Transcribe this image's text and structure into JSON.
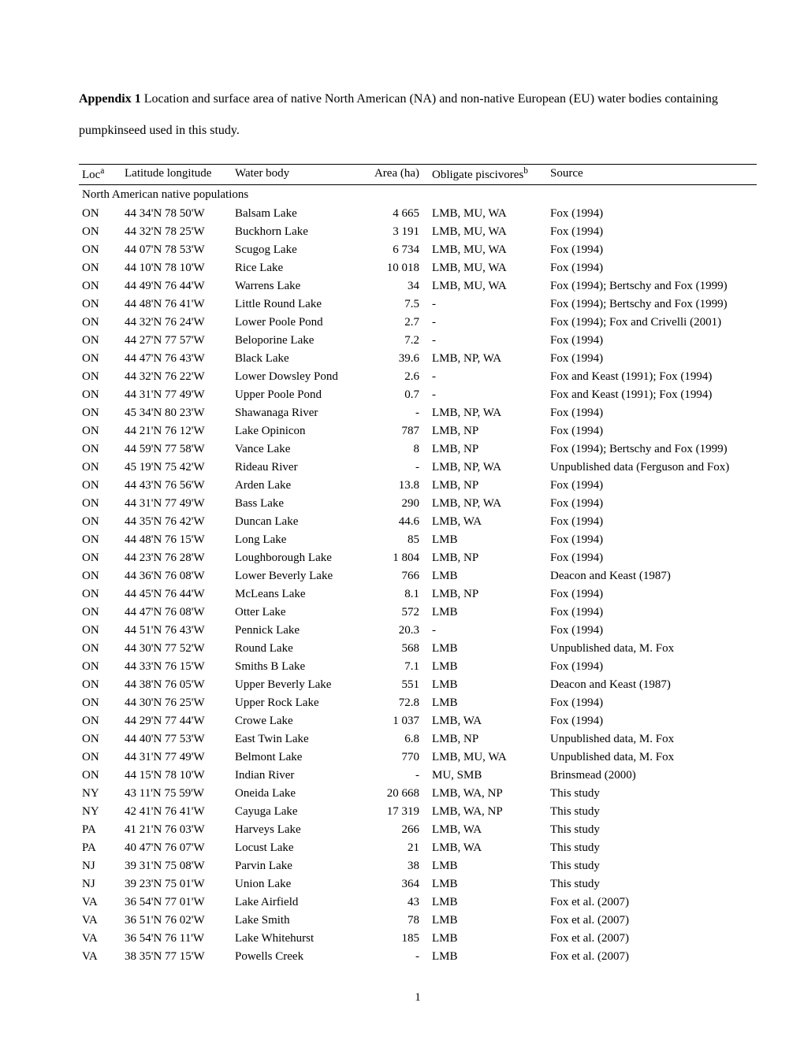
{
  "intro": {
    "bold": "Appendix 1",
    "rest": " Location and surface area of native North American (NA) and non-native European (EU) water bodies containing pumpkinseed used in this study."
  },
  "headers": {
    "loc": "Loc",
    "loc_sup": "a",
    "lat": "Latitude longitude",
    "wb": "Water body",
    "area": "Area (ha)",
    "pisc": "Obligate piscivores",
    "pisc_sup": "b",
    "src": "Source"
  },
  "section": "North American native populations",
  "rows": [
    {
      "loc": "ON",
      "lat": "44 34'N 78 50'W",
      "wb": "Balsam Lake",
      "area": "4 665",
      "pisc": "LMB, MU, WA",
      "src": "Fox (1994)"
    },
    {
      "loc": "ON",
      "lat": "44 32'N 78 25'W",
      "wb": "Buckhorn Lake",
      "area": "3 191",
      "pisc": "LMB, MU, WA",
      "src": "Fox (1994)"
    },
    {
      "loc": "ON",
      "lat": "44 07'N 78 53'W",
      "wb": "Scugog Lake",
      "area": "6 734",
      "pisc": "LMB, MU, WA",
      "src": "Fox (1994)"
    },
    {
      "loc": "ON",
      "lat": "44 10'N 78 10'W",
      "wb": "Rice Lake",
      "area": "10 018",
      "pisc": "LMB, MU, WA",
      "src": "Fox (1994)"
    },
    {
      "loc": "ON",
      "lat": "44 49'N 76 44'W",
      "wb": "Warrens Lake",
      "area": "34",
      "pisc": "LMB, MU, WA",
      "src": "Fox (1994); Bertschy and Fox (1999)"
    },
    {
      "loc": "ON",
      "lat": "44 48'N 76 41'W",
      "wb": "Little Round Lake",
      "area": "7.5",
      "pisc": "-",
      "src": "Fox (1994); Bertschy and Fox (1999)"
    },
    {
      "loc": "ON",
      "lat": "44 32'N 76 24'W",
      "wb": "Lower Poole Pond",
      "area": "2.7",
      "pisc": "-",
      "src": "Fox (1994); Fox and Crivelli (2001)"
    },
    {
      "loc": "ON",
      "lat": "44 27'N 77 57'W",
      "wb": "Beloporine Lake",
      "area": "7.2",
      "pisc": "-",
      "src": "Fox (1994)"
    },
    {
      "loc": "ON",
      "lat": "44 47'N 76 43'W",
      "wb": "Black Lake",
      "area": "39.6",
      "pisc": "LMB, NP, WA",
      "src": "Fox (1994)"
    },
    {
      "loc": "ON",
      "lat": "44 32'N 76 22'W",
      "wb": "Lower Dowsley Pond",
      "area": "2.6",
      "pisc": "-",
      "src": "Fox and Keast (1991); Fox (1994)"
    },
    {
      "loc": "ON",
      "lat": "44 31'N 77 49'W",
      "wb": "Upper Poole Pond",
      "area": "0.7",
      "pisc": "-",
      "src": "Fox and Keast (1991); Fox (1994)"
    },
    {
      "loc": "ON",
      "lat": "45 34'N 80 23'W",
      "wb": "Shawanaga River",
      "area": "-",
      "pisc": "LMB, NP, WA",
      "src": "Fox (1994)"
    },
    {
      "loc": "ON",
      "lat": "44 21'N 76 12'W",
      "wb": "Lake Opinicon",
      "area": "787",
      "pisc": "LMB, NP",
      "src": "Fox (1994)"
    },
    {
      "loc": "ON",
      "lat": "44 59'N 77 58'W",
      "wb": "Vance Lake",
      "area": "8",
      "pisc": "LMB, NP",
      "src": "Fox (1994); Bertschy and Fox (1999)"
    },
    {
      "loc": "ON",
      "lat": "45 19'N 75 42'W",
      "wb": "Rideau River",
      "area": "-",
      "pisc": "LMB, NP, WA",
      "src": "Unpublished data (Ferguson and Fox)"
    },
    {
      "loc": "ON",
      "lat": "44 43'N 76 56'W",
      "wb": "Arden Lake",
      "area": "13.8",
      "pisc": "LMB, NP",
      "src": "Fox (1994)"
    },
    {
      "loc": "ON",
      "lat": "44 31'N 77 49'W",
      "wb": "Bass Lake",
      "area": "290",
      "pisc": "LMB, NP, WA",
      "src": "Fox (1994)"
    },
    {
      "loc": "ON",
      "lat": "44 35'N 76 42'W",
      "wb": "Duncan Lake",
      "area": "44.6",
      "pisc": "LMB, WA",
      "src": "Fox (1994)"
    },
    {
      "loc": "ON",
      "lat": "44 48'N 76 15'W",
      "wb": "Long Lake",
      "area": "85",
      "pisc": "LMB",
      "src": "Fox (1994)"
    },
    {
      "loc": "ON",
      "lat": "44 23'N 76 28'W",
      "wb": "Loughborough Lake",
      "area": "1 804",
      "pisc": "LMB, NP",
      "src": "Fox (1994)"
    },
    {
      "loc": "ON",
      "lat": "44 36'N 76 08'W",
      "wb": "Lower Beverly Lake",
      "area": "766",
      "pisc": "LMB",
      "src": "Deacon and Keast (1987)"
    },
    {
      "loc": "ON",
      "lat": "44 45'N 76 44'W",
      "wb": "McLeans Lake",
      "area": "8.1",
      "pisc": "LMB, NP",
      "src": "Fox (1994)"
    },
    {
      "loc": "ON",
      "lat": "44 47'N 76 08'W",
      "wb": "Otter Lake",
      "area": "572",
      "pisc": "LMB",
      "src": "Fox (1994)"
    },
    {
      "loc": "ON",
      "lat": "44 51'N 76 43'W",
      "wb": "Pennick Lake",
      "area": "20.3",
      "pisc": "-",
      "src": "Fox (1994)"
    },
    {
      "loc": "ON",
      "lat": "44 30'N 77 52'W",
      "wb": "Round Lake",
      "area": "568",
      "pisc": "LMB",
      "src": "Unpublished data, M. Fox"
    },
    {
      "loc": "ON",
      "lat": "44 33'N 76 15'W",
      "wb": "Smiths B Lake",
      "area": "7.1",
      "pisc": "LMB",
      "src": "Fox (1994)"
    },
    {
      "loc": "ON",
      "lat": "44 38'N 76 05'W",
      "wb": "Upper Beverly Lake",
      "area": "551",
      "pisc": "LMB",
      "src": "Deacon and Keast (1987)"
    },
    {
      "loc": "ON",
      "lat": "44 30'N 76 25'W",
      "wb": "Upper Rock Lake",
      "area": "72.8",
      "pisc": "LMB",
      "src": "Fox (1994)"
    },
    {
      "loc": "ON",
      "lat": "44 29'N 77 44'W",
      "wb": "Crowe Lake",
      "area": "1 037",
      "pisc": "LMB, WA",
      "src": "Fox (1994)"
    },
    {
      "loc": "ON",
      "lat": "44 40'N 77 53'W",
      "wb": "East Twin Lake",
      "area": "6.8",
      "pisc": "LMB, NP",
      "src": "Unpublished data, M. Fox"
    },
    {
      "loc": "ON",
      "lat": "44 31'N 77 49'W",
      "wb": "Belmont Lake",
      "area": "770",
      "pisc": "LMB, MU, WA",
      "src": "Unpublished data, M. Fox"
    },
    {
      "loc": "ON",
      "lat": "44 15'N 78 10'W",
      "wb": "Indian River",
      "area": "-",
      "pisc": "MU, SMB",
      "src": "Brinsmead (2000)"
    },
    {
      "loc": "NY",
      "lat": "43 11'N 75 59'W",
      "wb": "Oneida Lake",
      "area": "20 668",
      "pisc": "LMB, WA, NP",
      "src": "This study"
    },
    {
      "loc": "NY",
      "lat": "42 41'N 76 41'W",
      "wb": "Cayuga Lake",
      "area": "17 319",
      "pisc": "LMB, WA, NP",
      "src": "This study"
    },
    {
      "loc": "PA",
      "lat": "41 21'N 76 03'W",
      "wb": "Harveys Lake",
      "area": "266",
      "pisc": "LMB, WA",
      "src": "This study"
    },
    {
      "loc": "PA",
      "lat": "40 47'N 76 07'W",
      "wb": "Locust Lake",
      "area": "21",
      "pisc": "LMB, WA",
      "src": "This study"
    },
    {
      "loc": "NJ",
      "lat": "39 31'N 75 08'W",
      "wb": "Parvin Lake",
      "area": "38",
      "pisc": "LMB",
      "src": "This study"
    },
    {
      "loc": "NJ",
      "lat": "39 23'N 75 01'W",
      "wb": "Union Lake",
      "area": "364",
      "pisc": "LMB",
      "src": "This study"
    },
    {
      "loc": "VA",
      "lat": "36 54'N 77 01'W",
      "wb": "Lake Airfield",
      "area": "43",
      "pisc": "LMB",
      "src": "Fox et al. (2007)"
    },
    {
      "loc": "VA",
      "lat": "36 51'N 76 02'W",
      "wb": "Lake Smith",
      "area": "78",
      "pisc": "LMB",
      "src": "Fox et al. (2007)"
    },
    {
      "loc": "VA",
      "lat": "36 54'N 76 11'W",
      "wb": "Lake Whitehurst",
      "area": "185",
      "pisc": "LMB",
      "src": "Fox et al. (2007)"
    },
    {
      "loc": "VA",
      "lat": "38 35'N 77 15'W",
      "wb": "Powells Creek",
      "area": "-",
      "pisc": "LMB",
      "src": "Fox et al. (2007)"
    }
  ],
  "pagenum": "1"
}
